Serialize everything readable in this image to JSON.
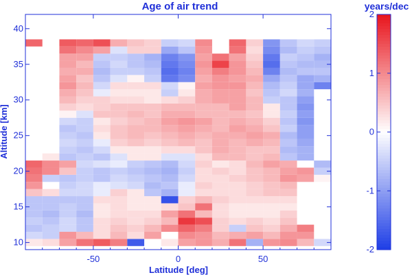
{
  "chart_data": {
    "type": "heatmap",
    "title": "Age of air trend",
    "xlabel": "Latitude [deg]",
    "ylabel": "Altitude [km]",
    "xlim": [
      -90,
      90
    ],
    "ylim": [
      9,
      42
    ],
    "xticks": [
      -50,
      0,
      50
    ],
    "yticks": [
      10,
      15,
      20,
      25,
      30,
      35,
      40
    ],
    "x": [
      -85,
      -75,
      -65,
      -55,
      -45,
      -35,
      -25,
      -15,
      -5,
      5,
      15,
      25,
      35,
      45,
      55,
      65,
      75,
      85
    ],
    "y": [
      10,
      11,
      12,
      13,
      14,
      15,
      16,
      17,
      18,
      19,
      20,
      21,
      22,
      23,
      24,
      25,
      26,
      27,
      28,
      29,
      30,
      31,
      32,
      33,
      34,
      35,
      36,
      37,
      38,
      39
    ],
    "values": [
      [
        0.2,
        0.3,
        0.8,
        1.2,
        1.4,
        1.1,
        -1.7,
        null,
        0.2,
        0.8,
        0.9,
        0.7,
        1.2,
        -0.8,
        0.9,
        1.0,
        0.6,
        -0.4
      ],
      [
        -0.4,
        -0.5,
        0.9,
        0.6,
        0.3,
        0.6,
        0.3,
        0.8,
        null,
        1.0,
        0.9,
        0.6,
        0.7,
        0.8,
        0.6,
        0.9,
        0.9,
        null
      ],
      [
        -0.6,
        -0.5,
        -0.4,
        -0.6,
        0.3,
        0.5,
        0.4,
        0.6,
        1.0,
        1.3,
        1.1,
        0.4,
        -0.5,
        0.5,
        0.4,
        0.7,
        1.1,
        null
      ],
      [
        -0.5,
        -0.6,
        -0.4,
        -0.6,
        0.3,
        0.4,
        0.3,
        0.4,
        0.6,
        1.7,
        1.5,
        0.4,
        0.3,
        0.4,
        0.3,
        0.5,
        null,
        null
      ],
      [
        -0.6,
        -0.7,
        -0.5,
        -0.7,
        0.2,
        0.3,
        0.3,
        0.3,
        0.8,
        1.2,
        0.6,
        0.3,
        0.2,
        0.2,
        0.2,
        0.4,
        null,
        null
      ],
      [
        -0.6,
        -0.6,
        -0.5,
        -0.6,
        0.2,
        0.3,
        0.2,
        0.2,
        0.3,
        0.5,
        1.2,
        0.3,
        0.2,
        0.2,
        0.2,
        0.2,
        null,
        null
      ],
      [
        -0.6,
        -0.6,
        -0.6,
        -0.6,
        0.3,
        0.3,
        0.2,
        0.2,
        -1.8,
        0.4,
        0.6,
        0.4,
        0.3,
        0.3,
        0.3,
        0.3,
        null,
        null
      ],
      [
        0.5,
        0.3,
        -0.4,
        -0.4,
        -0.2,
        0.4,
        0.2,
        -0.6,
        -0.8,
        -0.2,
        0.3,
        0.3,
        0.3,
        0.4,
        0.5,
        0.5,
        null,
        null
      ],
      [
        0.9,
        null,
        -0.5,
        -0.4,
        -0.2,
        -0.3,
        -0.4,
        -0.7,
        -0.6,
        -0.2,
        0.4,
        0.3,
        0.3,
        0.4,
        0.5,
        0.6,
        null,
        null
      ],
      [
        1.1,
        -0.5,
        -0.6,
        -0.5,
        -0.6,
        -0.4,
        -0.5,
        -0.6,
        -0.7,
        -0.4,
        0.3,
        0.3,
        0.4,
        0.5,
        0.6,
        0.9,
        0.8,
        0.1
      ],
      [
        1.2,
        1.0,
        0.5,
        -0.5,
        -0.6,
        -0.5,
        -0.6,
        -0.7,
        -0.8,
        -0.5,
        0.3,
        0.4,
        0.3,
        0.5,
        0.6,
        0.8,
        0.9,
        -0.5
      ],
      [
        1.3,
        1.0,
        0.8,
        -0.4,
        -0.3,
        -0.2,
        -0.5,
        -0.6,
        -0.7,
        -0.4,
        0.4,
        0.2,
        0.3,
        0.6,
        0.8,
        0.7,
        null,
        -0.7
      ],
      [
        null,
        0.2,
        -0.6,
        -0.5,
        -0.6,
        -0.3,
        0.2,
        0.2,
        -0.3,
        -0.3,
        0.3,
        0.6,
        0.6,
        0.5,
        0.6,
        -0.6,
        -0.8,
        null
      ],
      [
        null,
        null,
        -0.5,
        -0.6,
        -0.4,
        0.2,
        0.2,
        0.2,
        0.3,
        0.3,
        0.5,
        0.7,
        0.6,
        0.5,
        0.5,
        -0.7,
        -0.8,
        null
      ],
      [
        null,
        null,
        -0.4,
        -0.5,
        -0.2,
        0.4,
        0.5,
        0.4,
        0.5,
        0.6,
        0.5,
        0.7,
        0.6,
        0.7,
        0.6,
        -0.6,
        -0.9,
        null
      ],
      [
        null,
        null,
        -0.5,
        -0.6,
        0.2,
        0.5,
        0.6,
        0.5,
        0.6,
        0.7,
        0.6,
        0.7,
        0.7,
        0.8,
        0.7,
        -0.7,
        -1.0,
        null
      ],
      [
        null,
        null,
        -0.6,
        -0.5,
        0.3,
        0.5,
        0.6,
        0.6,
        0.7,
        0.8,
        0.7,
        0.6,
        0.8,
        0.7,
        0.5,
        -0.5,
        -1.0,
        null
      ],
      [
        null,
        null,
        -0.4,
        -0.5,
        0.2,
        0.4,
        0.5,
        0.6,
        0.8,
        0.9,
        0.8,
        0.6,
        0.7,
        0.6,
        0.4,
        -0.6,
        -1.1,
        null
      ],
      [
        null,
        null,
        0.1,
        -0.3,
        0.5,
        0.5,
        0.6,
        0.5,
        0.7,
        0.7,
        0.6,
        0.6,
        0.6,
        0.5,
        0.2,
        -0.5,
        -1.0,
        null
      ],
      [
        null,
        null,
        0.4,
        0.3,
        0.4,
        0.5,
        0.5,
        0.5,
        0.6,
        0.6,
        0.6,
        0.6,
        0.8,
        0.6,
        0.2,
        -0.6,
        -1.1,
        null
      ],
      [
        null,
        null,
        0.6,
        0.4,
        0.4,
        0.3,
        0.3,
        0.2,
        0.3,
        0.4,
        0.7,
        0.8,
        0.8,
        0.6,
        -0.5,
        -0.6,
        -1.0,
        null
      ],
      [
        null,
        null,
        0.7,
        0.5,
        -0.2,
        0.2,
        0.2,
        0.2,
        -0.5,
        0.2,
        0.7,
        0.8,
        0.8,
        0.5,
        -0.6,
        -0.4,
        -0.8,
        null
      ],
      [
        null,
        null,
        0.9,
        0.6,
        -0.4,
        0.3,
        0.3,
        0.3,
        -0.4,
        0.1,
        0.8,
        0.9,
        0.9,
        0.6,
        -0.7,
        -0.5,
        -0.9,
        -1.3
      ],
      [
        null,
        null,
        0.8,
        0.5,
        -0.6,
        -0.3,
        0.1,
        -0.5,
        -1.4,
        -1.2,
        0.7,
        0.9,
        0.8,
        0.7,
        -0.9,
        -0.6,
        -0.9,
        -0.8
      ],
      [
        null,
        null,
        0.7,
        0.7,
        -0.7,
        -0.5,
        -0.5,
        -0.6,
        -1.5,
        -1.3,
        0.8,
        1.1,
        0.9,
        0.6,
        -1.3,
        -0.7,
        -0.6,
        -0.6
      ],
      [
        null,
        null,
        0.8,
        0.6,
        -0.6,
        -0.4,
        -0.6,
        -0.7,
        -1.4,
        -1.2,
        0.9,
        1.6,
        0.9,
        0.5,
        -1.5,
        -0.6,
        -0.7,
        -0.7
      ],
      [
        null,
        null,
        0.8,
        0.8,
        -0.5,
        -0.5,
        -0.6,
        -0.8,
        -1.3,
        -1.1,
        0.8,
        1.2,
        0.8,
        0.4,
        -1.4,
        -0.5,
        -0.6,
        -0.8
      ],
      [
        null,
        null,
        1.2,
        1.0,
        0.8,
        -0.3,
        0.4,
        0.4,
        -0.9,
        -0.6,
        0.9,
        null,
        1.2,
        0.3,
        -1.2,
        -0.7,
        -0.5,
        -0.6
      ],
      [
        1.3,
        null,
        1.4,
        1.3,
        1.5,
        0.7,
        0.5,
        0.4,
        -0.5,
        -0.4,
        1.0,
        null,
        1.3,
        0.4,
        -1.1,
        -0.6,
        -0.4,
        -0.5
      ],
      [
        null,
        null,
        null,
        null,
        null,
        null,
        null,
        null,
        null,
        null,
        null,
        null,
        null,
        null,
        null,
        null,
        null,
        null
      ]
    ],
    "colorbar": {
      "label": "years/dec",
      "range": [
        -2,
        2
      ],
      "ticks": [
        -2,
        -1,
        0,
        1,
        2
      ],
      "tick_labels": [
        "-2",
        "-1",
        "0",
        "1",
        "2"
      ]
    },
    "colormap": {
      "negative": "#1e3ee6",
      "zero": "#ffffff",
      "positive": "#e8141c"
    },
    "text_color": "#1f2fd8"
  }
}
